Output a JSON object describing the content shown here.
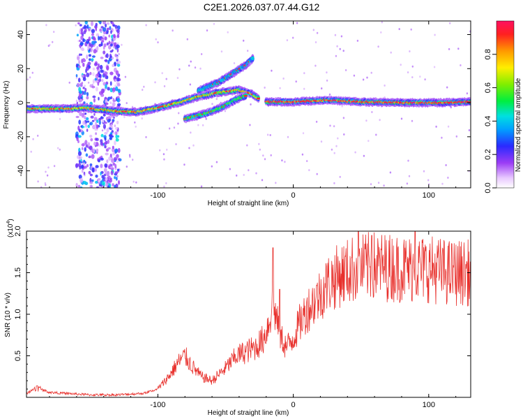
{
  "title": "C2E1.2026.037.07.44.G12",
  "colors": {
    "snr_line": "#e8302c",
    "axes": "#000000"
  },
  "chart_data": [
    {
      "type": "heatmap",
      "name": "spectrogram",
      "xlabel": "Height of straight line (km)",
      "ylabel": "Frequency (Hz)",
      "xlim": [
        -197,
        131
      ],
      "ylim": [
        -50,
        48
      ],
      "xticks": [
        -100,
        0,
        100
      ],
      "xtick_labels": [
        "-100",
        "0",
        "100"
      ],
      "yticks": [
        -40,
        -20,
        0,
        20,
        40
      ],
      "ytick_labels": [
        "-40",
        "-20",
        "0",
        "20",
        "40"
      ],
      "colorbar": {
        "label": "Normalized spectral amplitude",
        "range": [
          0.0,
          1.0
        ],
        "ticks": [
          0.0,
          0.2,
          0.4,
          0.6,
          0.8
        ],
        "tick_labels": [
          "0.0",
          "0.2",
          "0.4",
          "0.6",
          "0.8"
        ]
      },
      "tracks": [
        {
          "name": "main-carrier-left",
          "points": [
            [
              -197,
              -3.5
            ],
            [
              -165,
              -3.5
            ],
            [
              -155,
              -3.0
            ],
            [
              -130,
              -5.0
            ],
            [
              -115,
              -5.5
            ],
            [
              -100,
              -3.0
            ],
            [
              -85,
              0.0
            ],
            [
              -70,
              3.5
            ],
            [
              -55,
              6.0
            ],
            [
              -40,
              7.5
            ],
            [
              -30,
              5.0
            ],
            [
              -25,
              2.0
            ]
          ],
          "amplitude": 0.75
        },
        {
          "name": "main-carrier-right",
          "points": [
            [
              -20,
              0.5
            ],
            [
              0,
              0.5
            ],
            [
              25,
              1.5
            ],
            [
              50,
              0.5
            ],
            [
              80,
              0.0
            ],
            [
              110,
              0.0
            ],
            [
              131,
              0.5
            ]
          ],
          "amplitude": 0.9
        },
        {
          "name": "secondary-branch",
          "points": [
            [
              -80,
              -9.5
            ],
            [
              -65,
              -6.5
            ],
            [
              -52,
              -2.5
            ],
            [
              -42,
              2.0
            ],
            [
              -35,
              4.0
            ]
          ],
          "amplitude": 0.55
        },
        {
          "name": "upper-branch",
          "points": [
            [
              -70,
              7.0
            ],
            [
              -55,
              12.0
            ],
            [
              -45,
              17.0
            ],
            [
              -35,
              22.0
            ],
            [
              -30,
              26.0
            ]
          ],
          "amplitude": 0.35
        }
      ],
      "noise_band": {
        "x_range": [
          -160,
          -128
        ],
        "amplitude": 0.3
      }
    },
    {
      "type": "line",
      "name": "snr",
      "xlabel": "Height of straight line (km)",
      "ylabel": "SNR (10 * v/v)",
      "multiplier_label": "(x10",
      "multiplier_exponent": "4",
      "multiplier_close": ")",
      "xlim": [
        -197,
        131
      ],
      "ylim": [
        0,
        2.0
      ],
      "xticks": [
        -100,
        0,
        100
      ],
      "xtick_labels": [
        "-100",
        "0",
        "100"
      ],
      "yticks": [
        0.5,
        1.0,
        1.5,
        2.0
      ],
      "ytick_labels": [
        "0.5",
        "1.0",
        "1.5",
        "2.0"
      ],
      "series": [
        {
          "name": "SNR",
          "envelope": [
            [
              -197,
              0.04
            ],
            [
              -190,
              0.12
            ],
            [
              -180,
              0.06
            ],
            [
              -170,
              0.05
            ],
            [
              -150,
              0.03
            ],
            [
              -130,
              0.03
            ],
            [
              -110,
              0.05
            ],
            [
              -100,
              0.1
            ],
            [
              -92,
              0.25
            ],
            [
              -85,
              0.42
            ],
            [
              -80,
              0.5
            ],
            [
              -75,
              0.38
            ],
            [
              -68,
              0.25
            ],
            [
              -60,
              0.2
            ],
            [
              -50,
              0.35
            ],
            [
              -42,
              0.5
            ],
            [
              -35,
              0.55
            ],
            [
              -28,
              0.6
            ],
            [
              -22,
              0.7
            ],
            [
              -18,
              0.9
            ],
            [
              -15,
              1.15
            ],
            [
              -10,
              0.75
            ],
            [
              -5,
              0.6
            ],
            [
              0,
              0.72
            ],
            [
              5,
              0.9
            ],
            [
              10,
              1.05
            ],
            [
              18,
              1.2
            ],
            [
              26,
              1.38
            ],
            [
              35,
              1.48
            ],
            [
              45,
              1.55
            ],
            [
              60,
              1.58
            ],
            [
              80,
              1.55
            ],
            [
              100,
              1.55
            ],
            [
              115,
              1.5
            ],
            [
              131,
              1.5
            ]
          ],
          "noise_amplitude": 0.15,
          "spikes": [
            [
              -15,
              1.8
            ],
            [
              -10,
              1.3
            ],
            [
              48,
              2.0
            ],
            [
              58,
              1.95
            ],
            [
              90,
              2.0
            ]
          ]
        }
      ]
    }
  ]
}
